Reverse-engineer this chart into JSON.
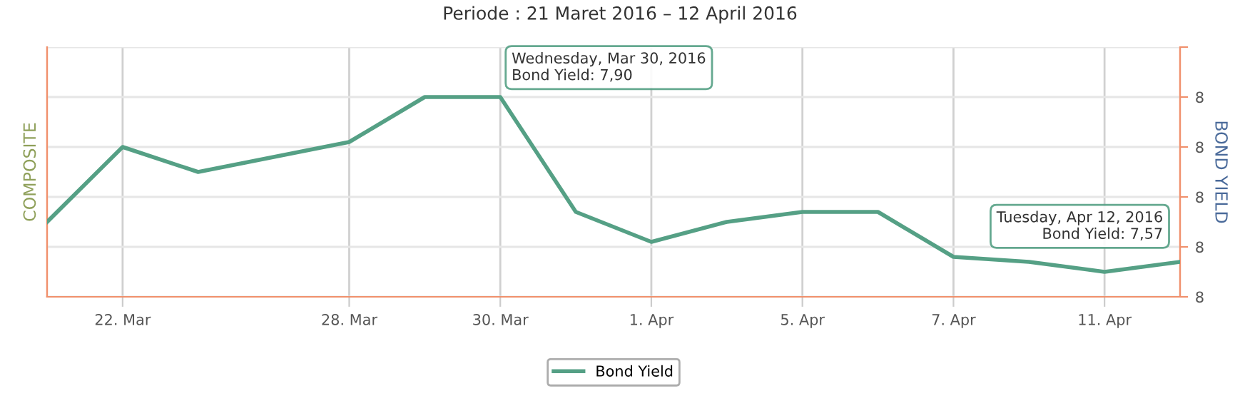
{
  "chart_data": {
    "type": "line",
    "title": "Periode : 21 Maret 2016 – 12 April 2016",
    "categories": [
      null,
      "22. Mar",
      null,
      null,
      "28. Mar",
      null,
      "30. Mar",
      null,
      "1. Apr",
      null,
      "5. Apr",
      null,
      "7. Apr",
      null,
      "11. Apr",
      null
    ],
    "series": [
      {
        "name": "Bond Yield",
        "color": "#55a085",
        "axis": "y2",
        "values": [
          7.65,
          7.8,
          7.75,
          7.78,
          7.81,
          7.9,
          7.9,
          7.67,
          7.61,
          7.65,
          7.67,
          7.67,
          7.58,
          7.57,
          7.55,
          7.57
        ]
      }
    ],
    "ylabel": "COMPOSITE",
    "y2label": "BOND YIELD",
    "y2lim": [
      7.5,
      8.0
    ],
    "y2ticks": [
      {
        "value": 7.5,
        "label": "8"
      },
      {
        "value": 7.6,
        "label": "8"
      },
      {
        "value": 7.7,
        "label": "8"
      },
      {
        "value": 7.8,
        "label": "8"
      },
      {
        "value": 7.9,
        "label": "8"
      },
      {
        "value": 8.0,
        "label": null
      }
    ],
    "annotations": [
      "Wednesday, Mar 30, 2016\nBond Yield: 7,90",
      "Tuesday, Apr 12, 2016\nBond Yield: 7,57"
    ],
    "grid": true,
    "legend": "bottom",
    "marker": "none",
    "line_style": "solid"
  }
}
